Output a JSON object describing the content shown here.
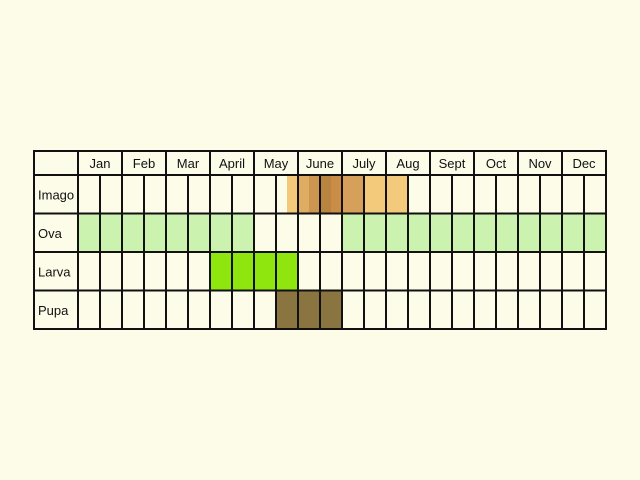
{
  "chart_data": {
    "type": "table",
    "months": [
      "Jan",
      "Feb",
      "Mar",
      "April",
      "May",
      "June",
      "July",
      "Aug",
      "Sept",
      "Oct",
      "Nov",
      "Dec"
    ],
    "columns_per_month": 2,
    "stages": [
      {
        "label": "Imago",
        "segments": [
          {
            "start_col": 9.5,
            "end_col": 10.0,
            "color": "#f5c97a"
          },
          {
            "start_col": 10.0,
            "end_col": 10.5,
            "color": "#e0ac62"
          },
          {
            "start_col": 10.5,
            "end_col": 11.0,
            "color": "#cc9550"
          },
          {
            "start_col": 11.0,
            "end_col": 11.5,
            "color": "#b8843f"
          },
          {
            "start_col": 11.5,
            "end_col": 12.0,
            "color": "#c98d48"
          },
          {
            "start_col": 12.0,
            "end_col": 13.0,
            "color": "#d6a05a"
          },
          {
            "start_col": 13.0,
            "end_col": 14.0,
            "color": "#f3c97c"
          },
          {
            "start_col": 14.0,
            "end_col": 15.0,
            "color": "#f3c97c"
          }
        ]
      },
      {
        "label": "Ova",
        "segments": [
          {
            "start_col": 0,
            "end_col": 8,
            "color": "#ccf2b0"
          },
          {
            "start_col": 12,
            "end_col": 24,
            "color": "#ccf2b0"
          }
        ]
      },
      {
        "label": "Larva",
        "segments": [
          {
            "start_col": 6,
            "end_col": 10,
            "color": "#8ee60e"
          }
        ]
      },
      {
        "label": "Pupa",
        "segments": [
          {
            "start_col": 9,
            "end_col": 12,
            "color": "#8a7540"
          }
        ]
      }
    ],
    "background_color": "#fcfce8",
    "empty_cell_color": "#fcfce8",
    "grid_color": "#111111"
  }
}
